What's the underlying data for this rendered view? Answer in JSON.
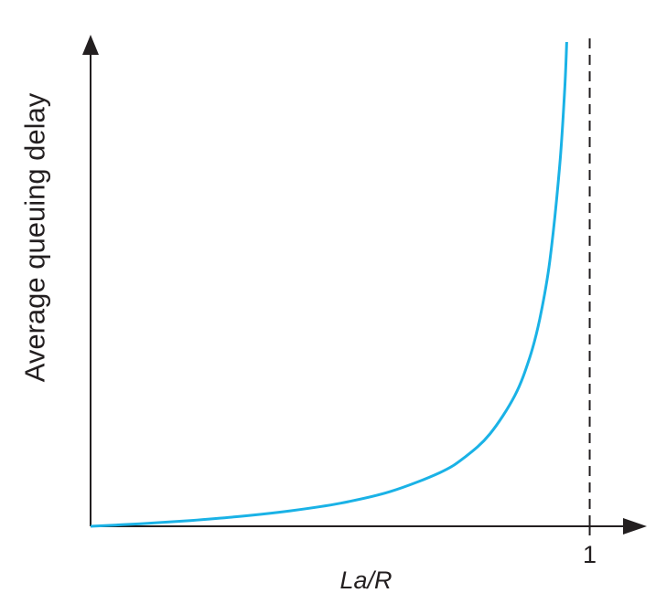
{
  "chart_data": {
    "type": "line",
    "title": "",
    "xlabel": "La/R",
    "ylabel": "Average queuing delay",
    "x_ticks": [
      {
        "value": 1,
        "label": "1"
      }
    ],
    "xlim": [
      0,
      1.12
    ],
    "ylim": [
      0,
      21
    ],
    "grid": false,
    "legend": "none",
    "series": [
      {
        "color": "#1ab2e6",
        "x": [
          0,
          0.1,
          0.2,
          0.3,
          0.4,
          0.5,
          0.6,
          0.7,
          0.75,
          0.8,
          0.85,
          0.88,
          0.9,
          0.92,
          0.94,
          0.95,
          0.96
        ],
        "y": [
          0,
          0.11,
          0.25,
          0.43,
          0.67,
          1,
          1.5,
          2.33,
          3,
          4,
          5.67,
          7.33,
          9,
          11.5,
          15.67,
          19,
          24
        ]
      }
    ],
    "reference_line": {
      "x": 1,
      "style": "dashed",
      "color": "#231f20"
    }
  }
}
